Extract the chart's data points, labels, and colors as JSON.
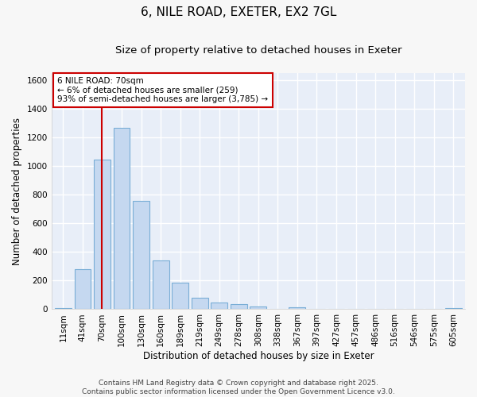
{
  "title_line1": "6, NILE ROAD, EXETER, EX2 7GL",
  "title_line2": "Size of property relative to detached houses in Exeter",
  "xlabel": "Distribution of detached houses by size in Exeter",
  "ylabel": "Number of detached properties",
  "bar_labels": [
    "11sqm",
    "41sqm",
    "70sqm",
    "100sqm",
    "130sqm",
    "160sqm",
    "189sqm",
    "219sqm",
    "249sqm",
    "278sqm",
    "308sqm",
    "338sqm",
    "367sqm",
    "397sqm",
    "427sqm",
    "457sqm",
    "486sqm",
    "516sqm",
    "546sqm",
    "575sqm",
    "605sqm"
  ],
  "bar_values": [
    10,
    280,
    1045,
    1270,
    760,
    340,
    185,
    80,
    48,
    38,
    20,
    5,
    15,
    2,
    2,
    2,
    1,
    2,
    0,
    0,
    8
  ],
  "bar_color": "#c5d8f0",
  "bar_edge_color": "#7aaed6",
  "highlight_bar_index": 2,
  "highlight_line_color": "#cc0000",
  "ylim": [
    0,
    1650
  ],
  "yticks": [
    0,
    200,
    400,
    600,
    800,
    1000,
    1200,
    1400,
    1600
  ],
  "annotation_text": "6 NILE ROAD: 70sqm\n← 6% of detached houses are smaller (259)\n93% of semi-detached houses are larger (3,785) →",
  "annotation_box_color": "#ffffff",
  "annotation_box_edge": "#cc0000",
  "footer_line1": "Contains HM Land Registry data © Crown copyright and database right 2025.",
  "footer_line2": "Contains public sector information licensed under the Open Government Licence v3.0.",
  "fig_bg_color": "#f7f7f7",
  "plot_bg_color": "#e8eef8",
  "grid_color": "#ffffff",
  "title_fontsize": 11,
  "subtitle_fontsize": 9.5,
  "axis_label_fontsize": 8.5,
  "tick_fontsize": 7.5,
  "annotation_fontsize": 7.5,
  "footer_fontsize": 6.5
}
